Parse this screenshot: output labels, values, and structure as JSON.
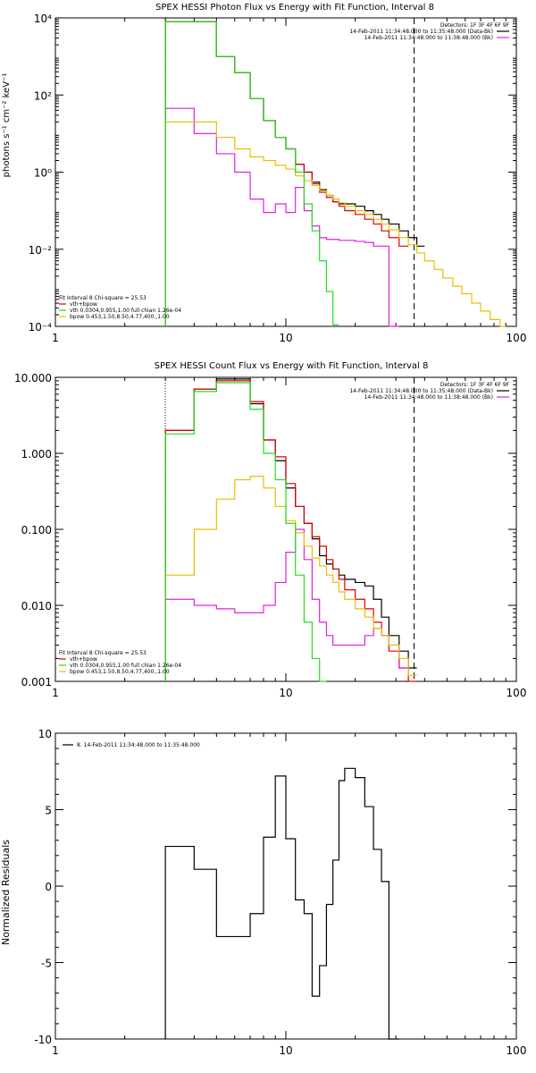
{
  "colors": {
    "background": "#ffffff",
    "axes": "#000000",
    "data": "#000000",
    "total_fit": "#e00000",
    "vth": "#22dd22",
    "bpow": "#e8c000",
    "background_series": "#e020e0"
  },
  "chart_data": [
    {
      "type": "line",
      "step": true,
      "title": "SPEX HESSI Photon Flux vs Energy with Fit Function, Interval 8",
      "xlabel": "",
      "ylabel": "photons s⁻¹ cm⁻² keV⁻¹",
      "xscale": "log",
      "yscale": "log",
      "xlim": [
        1,
        100
      ],
      "ylim": [
        0.0001,
        10000
      ],
      "xticks": [
        1,
        10,
        100
      ],
      "xtick_labels": [
        "1",
        "10",
        "100"
      ],
      "yticks": [
        0.0001,
        0.01,
        1,
        100,
        10000
      ],
      "ytick_labels": [
        "10⁻⁴",
        "10⁻²",
        "10⁰",
        "10²",
        "10⁴"
      ],
      "vlines": [
        {
          "x": 3,
          "style": "dotted"
        },
        {
          "x": 36,
          "style": "dashed"
        }
      ],
      "legend_top": [
        "Detectors: 1F 3F 4F 6F 9F",
        "14-Feb-2011 11:34:48.000 to 11:35:48.000 (Data-Bk)",
        "14-Feb-2011 11:34:48.000 to 11:38:48.000 (Bk)"
      ],
      "legend_top_colors": [
        "",
        "#000000",
        "#e020e0"
      ],
      "legend_bottom": [
        "Fit Interval 8   Chi-square = 25.53",
        "vth+bpow",
        "vth 0.0304,0.955,1.00  full chian 1.26e-04",
        "bpow 0.453,1.50,8.50,4.77,400.,1.00"
      ],
      "legend_bottom_colors": [
        "",
        "#e00000",
        "#22dd22",
        "#e8c000"
      ],
      "edges": [
        3,
        4,
        5,
        6,
        7,
        8,
        9,
        10,
        11,
        12,
        13,
        14,
        15,
        16,
        17,
        18,
        20,
        22,
        24,
        26,
        28,
        31,
        34,
        37,
        40,
        44,
        48,
        53,
        58,
        64,
        70,
        77,
        85,
        90
      ],
      "series": [
        {
          "name": "Data-Bk",
          "color": "#000000",
          "values": [
            8000,
            8000,
            1000,
            380,
            80,
            22,
            8,
            4,
            1.6,
            1.0,
            0.55,
            0.35,
            0.25,
            0.17,
            0.15,
            0.15,
            0.13,
            0.1,
            0.08,
            0.06,
            0.045,
            0.03,
            0.02,
            0.012
          ]
        },
        {
          "name": "Bk",
          "color": "#e020e0",
          "values": [
            45,
            10,
            3,
            1,
            0.2,
            0.09,
            0.15,
            0.09,
            0.4,
            0.1,
            0.04,
            0.02,
            0.018,
            0.018,
            0.017,
            0.017,
            0.016,
            0.015,
            0.012,
            0.012,
            0.0001
          ]
        },
        {
          "name": "vth+bpow",
          "color": "#e00000",
          "values": [
            8000,
            8000,
            1000,
            380,
            80,
            22,
            8,
            4,
            1.6,
            1.0,
            0.5,
            0.3,
            0.22,
            0.17,
            0.13,
            0.1,
            0.08,
            0.06,
            0.045,
            0.03,
            0.02,
            0.012
          ]
        },
        {
          "name": "vth",
          "color": "#22dd22",
          "values": [
            8000,
            8000,
            1000,
            380,
            80,
            22,
            8,
            4,
            1.0,
            0.15,
            0.03,
            0.005,
            0.0008,
            0.00011
          ]
        },
        {
          "name": "bpow",
          "color": "#e8c000",
          "values": [
            20,
            20,
            8,
            4,
            2.5,
            2,
            1.5,
            1.2,
            0.8,
            0.6,
            0.45,
            0.33,
            0.25,
            0.2,
            0.16,
            0.13,
            0.1,
            0.08,
            0.06,
            0.045,
            0.032,
            0.02,
            0.013,
            0.008,
            0.005,
            0.003,
            0.0018,
            0.0011,
            0.0007,
            0.0004,
            0.00025,
            0.00015,
            0.0001
          ]
        }
      ]
    },
    {
      "type": "line",
      "step": true,
      "title": "SPEX HESSI Count Flux vs Energy with Fit Function, Interval 8",
      "xlabel": "",
      "ylabel": "",
      "xscale": "log",
      "yscale": "log",
      "xlim": [
        1,
        100
      ],
      "ylim": [
        0.001,
        10
      ],
      "xticks": [
        1,
        10,
        100
      ],
      "xtick_labels": [
        "1",
        "10",
        "100"
      ],
      "yticks": [
        0.001,
        0.01,
        0.1,
        1,
        10
      ],
      "ytick_labels": [
        "0.001",
        "0.010",
        "0.100",
        "1.000",
        "10.000"
      ],
      "vlines": [
        {
          "x": 3,
          "style": "dotted"
        },
        {
          "x": 36,
          "style": "dashed"
        }
      ],
      "legend_top": [
        "Detectors: 1F 3F 4F 6F 9F",
        "14-Feb-2011 11:34:48.000 to 11:35:48.000 (Data-Bk)",
        "14-Feb-2011 11:34:48.000 to 11:38:48.000 (Bk)"
      ],
      "legend_top_colors": [
        "",
        "#000000",
        "#e020e0"
      ],
      "legend_bottom": [
        "Fit Interval 8   Chi-square = 25.53",
        "vth+bpow",
        "vth 0.0304,0.955,1.00  full chian 1.26e-04",
        "bpow 0.453,1.50,8.50,4.77,400.,1.00"
      ],
      "legend_bottom_colors": [
        "",
        "#e00000",
        "#22dd22",
        "#e8c000"
      ],
      "edges": [
        3,
        4,
        5,
        6,
        7,
        8,
        9,
        10,
        11,
        12,
        13,
        14,
        15,
        16,
        17,
        18,
        20,
        22,
        24,
        26,
        28,
        31,
        34,
        37
      ],
      "series": [
        {
          "name": "Data-Bk",
          "color": "#000000",
          "values": [
            2.0,
            7.0,
            9.5,
            9.5,
            4.5,
            1.5,
            0.8,
            0.35,
            0.2,
            0.12,
            0.075,
            0.045,
            0.035,
            0.03,
            0.025,
            0.022,
            0.02,
            0.018,
            0.012,
            0.007,
            0.004,
            0.0025,
            0.0015
          ]
        },
        {
          "name": "Bk",
          "color": "#e020e0",
          "values": [
            0.012,
            0.01,
            0.009,
            0.008,
            0.008,
            0.01,
            0.02,
            0.05,
            0.1,
            0.04,
            0.012,
            0.006,
            0.004,
            0.003,
            0.003,
            0.003,
            0.003,
            0.004,
            0.005,
            0.004,
            0.003,
            0.0015
          ]
        },
        {
          "name": "vth+bpow",
          "color": "#e00000",
          "values": [
            2.0,
            7.0,
            9.0,
            9.0,
            4.8,
            1.5,
            0.9,
            0.4,
            0.2,
            0.12,
            0.08,
            0.06,
            0.04,
            0.03,
            0.022,
            0.016,
            0.012,
            0.009,
            0.006,
            0.004,
            0.0025,
            0.0015,
            0.001
          ]
        },
        {
          "name": "vth",
          "color": "#22dd22",
          "values": [
            1.8,
            6.5,
            8.5,
            8.5,
            3.8,
            1.0,
            0.45,
            0.12,
            0.025,
            0.006,
            0.002,
            0.001
          ]
        },
        {
          "name": "bpow",
          "color": "#e8c000",
          "values": [
            0.025,
            0.1,
            0.25,
            0.45,
            0.5,
            0.35,
            0.2,
            0.13,
            0.09,
            0.06,
            0.042,
            0.033,
            0.025,
            0.02,
            0.015,
            0.012,
            0.009,
            0.007,
            0.005,
            0.004,
            0.003,
            0.002,
            0.0012
          ]
        }
      ]
    },
    {
      "type": "line",
      "step": true,
      "title": "",
      "xlabel": "",
      "ylabel": "Normalized Residuals",
      "xscale": "log",
      "yscale": "linear",
      "xlim": [
        1,
        100
      ],
      "ylim": [
        -10,
        10
      ],
      "xticks": [
        1,
        10,
        100
      ],
      "xtick_labels": [
        "1",
        "10",
        "100"
      ],
      "yticks": [
        -10,
        -5,
        0,
        5,
        10
      ],
      "ytick_labels": [
        "-10",
        "-5",
        "0",
        "5",
        "10"
      ],
      "legend_top": [
        "8. 14-Feb-2011 11:34:48.000 to 11:35:48.000"
      ],
      "legend_top_colors": [
        "#000000"
      ],
      "edges": [
        3,
        4,
        5,
        6,
        7,
        8,
        9,
        10,
        11,
        12,
        13,
        14,
        15,
        16,
        17,
        18,
        20,
        22,
        24,
        26,
        28,
        31,
        34,
        37
      ],
      "series": [
        {
          "name": "8. 14-Feb-2011 11:34:48.000 to 11:35:48.000",
          "color": "#000000",
          "values": [
            2.6,
            1.1,
            -3.3,
            -3.3,
            -1.8,
            3.2,
            7.2,
            3.1,
            -0.9,
            -1.8,
            -7.2,
            -5.2,
            -1.2,
            1.7,
            6.9,
            7.7,
            7.1,
            5.2,
            2.4,
            0.3,
            -10
          ]
        }
      ]
    }
  ]
}
